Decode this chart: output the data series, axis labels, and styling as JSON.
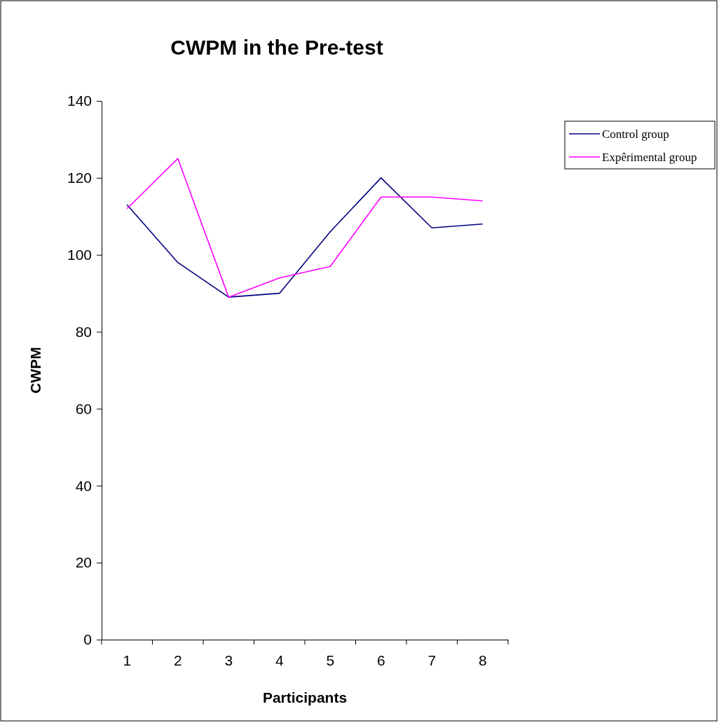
{
  "chart_data": {
    "type": "line",
    "title": "CWPM in the Pre-test",
    "xlabel": "Participants",
    "ylabel": "CWPM",
    "categories": [
      "1",
      "2",
      "3",
      "4",
      "5",
      "6",
      "7",
      "8"
    ],
    "series": [
      {
        "name": "Control group",
        "color": "#000080",
        "values": [
          113,
          98,
          89,
          90,
          106,
          120,
          107,
          108
        ]
      },
      {
        "name": "Expêrimental group",
        "color": "#ff00ff",
        "values": [
          112,
          125,
          89,
          94,
          97,
          115,
          115,
          114
        ]
      }
    ],
    "ylim": [
      0,
      140
    ],
    "yticks": [
      0,
      20,
      40,
      60,
      80,
      100,
      120,
      140
    ],
    "grid": false,
    "legend": "right",
    "marker": "none",
    "line_style": "solid"
  }
}
